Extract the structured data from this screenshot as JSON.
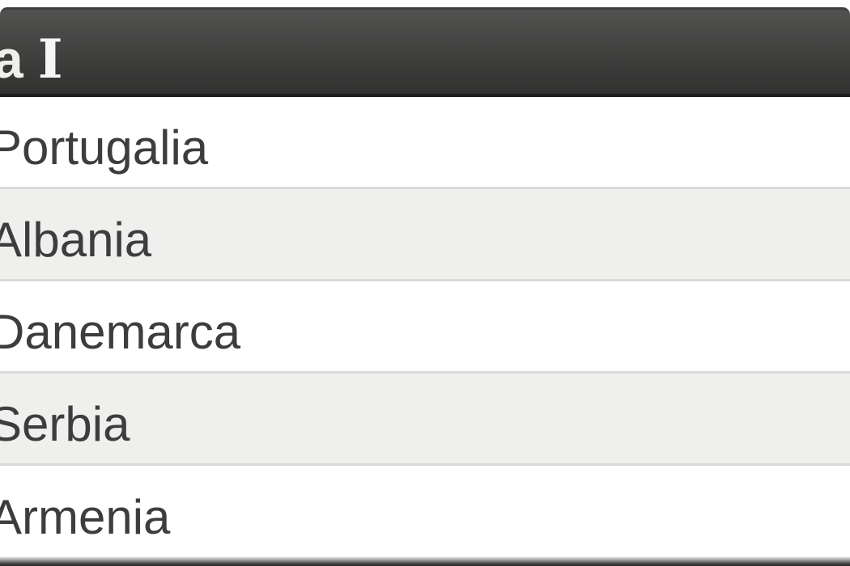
{
  "header": {
    "visible_text": "a I",
    "prefix": "a",
    "numeral": "I"
  },
  "list": {
    "items": [
      {
        "label": "Portugalia"
      },
      {
        "label": "Albania"
      },
      {
        "label": "Danemarca"
      },
      {
        "label": "Serbia"
      },
      {
        "label": "Armenia"
      }
    ]
  },
  "colors": {
    "header_bg_top": "#515150",
    "header_bg_bottom": "#323231",
    "header_text": "#f1efe9",
    "row_bg": "#ffffff",
    "row_alt_bg": "#efefee",
    "row_divider": "#d9d9d9",
    "row_text": "#3d3d3d"
  }
}
